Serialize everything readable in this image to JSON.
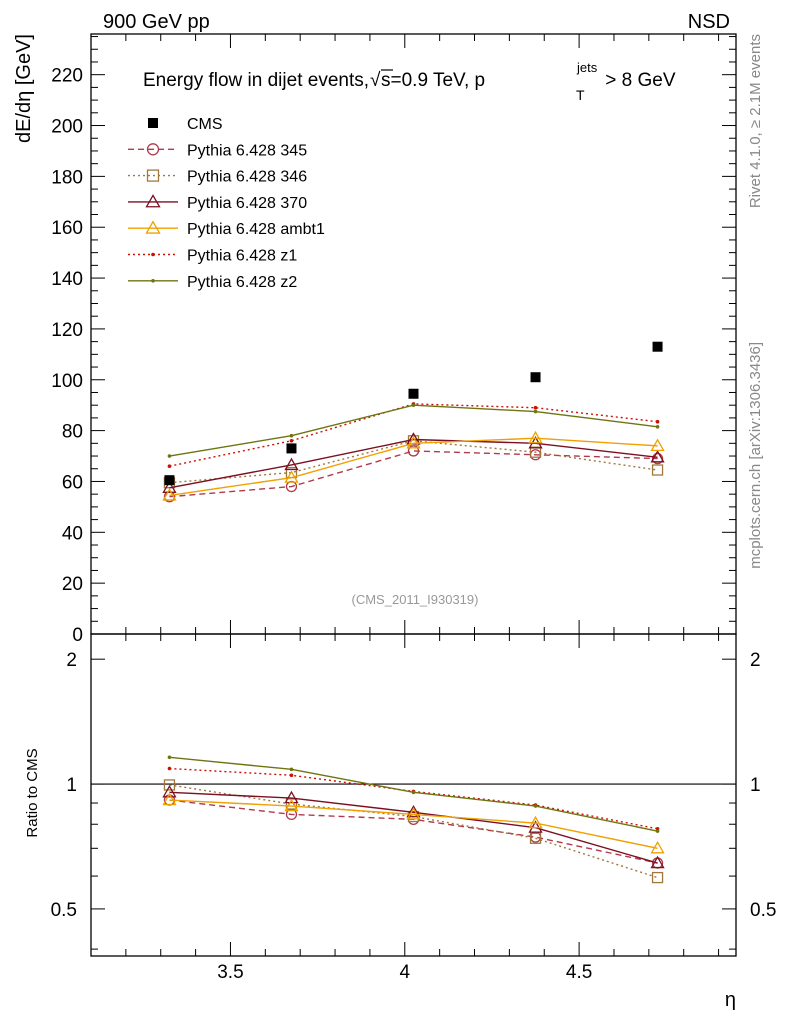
{
  "header": {
    "left": "900 GeV pp",
    "right": "NSD"
  },
  "side_labels": {
    "rivet": "Rivet 4.1.0, ≥ 2.1M events",
    "mcplots": "mcplots.cern.ch [arXiv:1306.3436]"
  },
  "chart_data": {
    "type": "line",
    "title_parts": {
      "pre": "Energy flow in dijet events,",
      "sqrt_s": "s",
      "mid": "=0.9 TeV, p",
      "sup": "jets",
      "sub": "T",
      "post": " > 8 GeV"
    },
    "ylabel": "dE/dη [GeV]",
    "xlabel": "η",
    "analysis_tag": "(CMS_2011_I930319)",
    "xlim": [
      3.1,
      4.95
    ],
    "ylim": [
      0,
      236
    ],
    "x_ticks": [
      3.5,
      4,
      4.5
    ],
    "x_tick_labels": [
      "3.5",
      "4",
      "4.5"
    ],
    "y_ticks": [
      0,
      20,
      40,
      60,
      80,
      100,
      120,
      140,
      160,
      180,
      200,
      220
    ],
    "y_tick_labels": [
      "0",
      "20",
      "40",
      "60",
      "80",
      "100",
      "120",
      "140",
      "160",
      "180",
      "200",
      "220"
    ],
    "x": [
      3.325,
      3.675,
      4.025,
      4.375,
      4.725
    ],
    "series": [
      {
        "name": "CMS",
        "label": "CMS",
        "values": [
          60.5,
          73.0,
          94.5,
          101.0,
          113.0
        ],
        "color": "#000000",
        "style": "data",
        "marker": "filled-square"
      },
      {
        "name": "p345",
        "label": "Pythia 6.428 345",
        "values": [
          54.0,
          58.0,
          72.0,
          70.5,
          69.0
        ],
        "color": "#b03a4c",
        "style": "dashed",
        "marker": "open-circle"
      },
      {
        "name": "p346",
        "label": "Pythia 6.428 346",
        "values": [
          59.5,
          63.5,
          76.0,
          71.5,
          64.5
        ],
        "color": "#a0783c",
        "style": "dotted",
        "marker": "open-square"
      },
      {
        "name": "p370",
        "label": "Pythia 6.428 370",
        "values": [
          57.5,
          66.5,
          76.5,
          75.0,
          69.5
        ],
        "color": "#7a1022",
        "style": "solid",
        "marker": "open-triangle"
      },
      {
        "name": "ambt1",
        "label": "Pythia 6.428 ambt1",
        "values": [
          54.5,
          61.5,
          75.0,
          77.0,
          74.0
        ],
        "color": "#f0a000",
        "style": "solid",
        "marker": "open-triangle"
      },
      {
        "name": "z1",
        "label": "Pythia 6.428 z1",
        "values": [
          66.0,
          76.0,
          90.5,
          89.0,
          83.5
        ],
        "color": "#cc1100",
        "style": "dotted",
        "marker": "dot"
      },
      {
        "name": "z2",
        "label": "Pythia 6.428 z2",
        "values": [
          70.0,
          78.0,
          90.0,
          87.5,
          81.5
        ],
        "color": "#6e7410",
        "style": "solid",
        "marker": "dot"
      }
    ],
    "ratio": {
      "ylabel": "Ratio to CMS",
      "scale": "log",
      "ylim": [
        0.385,
        2.3
      ],
      "ticks": [
        0.5,
        1,
        2
      ],
      "tick_labels": [
        "0.5",
        "1",
        "2"
      ],
      "reference_line": 1,
      "series": [
        {
          "name": "p345",
          "values": [
            0.915,
            0.845,
            0.822,
            0.745,
            0.645
          ]
        },
        {
          "name": "p346",
          "values": [
            0.995,
            0.895,
            0.835,
            0.74,
            0.595
          ]
        },
        {
          "name": "p370",
          "values": [
            0.955,
            0.925,
            0.855,
            0.785,
            0.645
          ]
        },
        {
          "name": "ambt1",
          "values": [
            0.915,
            0.885,
            0.845,
            0.805,
            0.7
          ]
        },
        {
          "name": "z1",
          "values": [
            1.09,
            1.05,
            0.96,
            0.89,
            0.78
          ]
        },
        {
          "name": "z2",
          "values": [
            1.16,
            1.085,
            0.955,
            0.885,
            0.77
          ]
        }
      ]
    }
  }
}
